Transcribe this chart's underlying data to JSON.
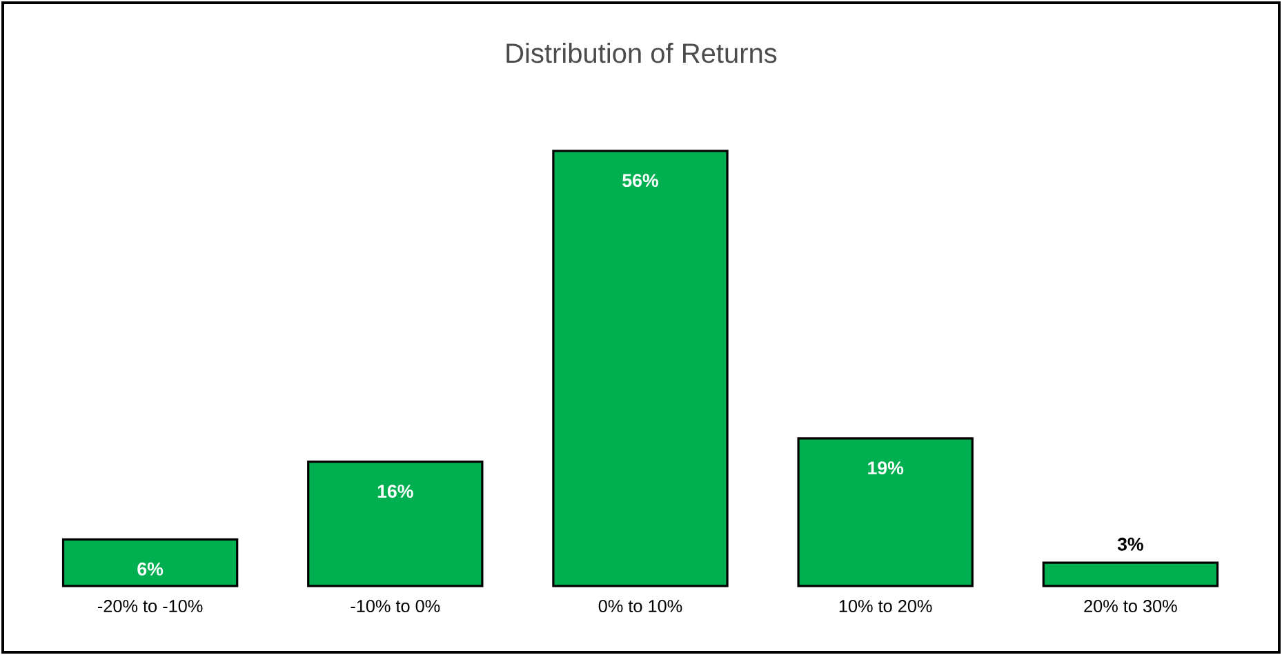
{
  "chart_data": {
    "type": "bar",
    "title": "Distribution of Returns",
    "categories": [
      "-20% to -10%",
      "-10% to 0%",
      "0% to 10%",
      "10% to 20%",
      "20% to 30%"
    ],
    "values": [
      6,
      16,
      56,
      19,
      3
    ],
    "value_labels": [
      "6%",
      "16%",
      "56%",
      "19%",
      "3%"
    ],
    "color": "#00b050"
  }
}
